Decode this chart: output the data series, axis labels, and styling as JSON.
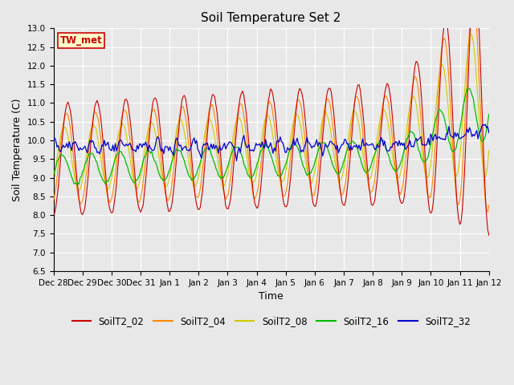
{
  "title": "Soil Temperature Set 2",
  "xlabel": "Time",
  "ylabel": "Soil Temperature (C)",
  "ylim": [
    6.5,
    13.0
  ],
  "yticks": [
    6.5,
    7.0,
    7.5,
    8.0,
    8.5,
    9.0,
    9.5,
    10.0,
    10.5,
    11.0,
    11.5,
    12.0,
    12.5,
    13.0
  ],
  "series_colors": {
    "SoilT2_02": "#cc0000",
    "SoilT2_04": "#ff8800",
    "SoilT2_08": "#cccc00",
    "SoilT2_16": "#00bb00",
    "SoilT2_32": "#0000cc"
  },
  "annotation_text": "TW_met",
  "annotation_color": "#cc0000",
  "annotation_bg": "#ffffcc",
  "annotation_border": "#cc0000",
  "plot_bg_color": "#e8e8e8",
  "grid_color": "#ffffff",
  "n_days": 15,
  "tick_labels": [
    "Dec 28",
    "Dec 29",
    "Dec 30",
    "Dec 31",
    "Jan 1",
    "Jan 2",
    "Jan 3",
    "Jan 4",
    "Jan 5",
    "Jan 6",
    "Jan 7",
    "Jan 8",
    "Jan 9",
    "Jan 10",
    "Jan 11",
    "Jan 12"
  ]
}
